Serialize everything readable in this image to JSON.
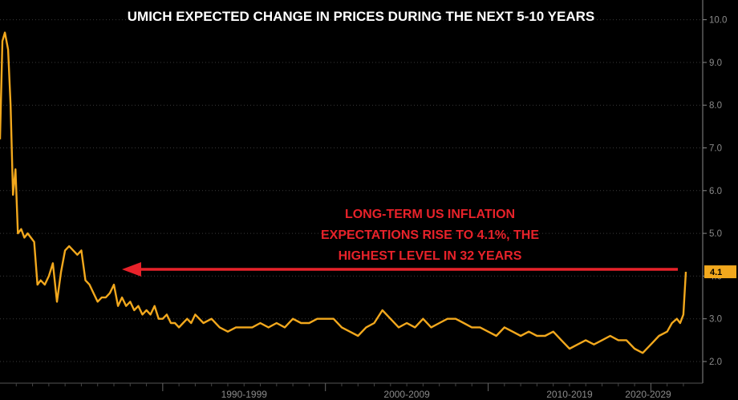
{
  "chart_data": {
    "type": "line",
    "title": "UMICH EXPECTED CHANGE IN PRICES DURING THE NEXT 5-10 YEARS",
    "xlabel": "",
    "ylabel": "",
    "ylim": [
      1.8,
      10.3
    ],
    "xlim": [
      1980.0,
      2022.2
    ],
    "y_ticks": [
      "2.0",
      "3.0",
      "4.0",
      "5.0",
      "6.0",
      "7.0",
      "8.0",
      "9.0",
      "10.0"
    ],
    "x_ticks": [
      {
        "label": "1990-1999",
        "x": 1995.0
      },
      {
        "label": "2000-2009",
        "x": 2005.0
      },
      {
        "label": "2010-2019",
        "x": 2015.0
      },
      {
        "label": "2020-2029",
        "x": 2024.5
      }
    ],
    "grid": true,
    "legend": "none",
    "line_color": "#f2a81d",
    "annotation_color": "#e8222a",
    "last_value_label": "4.1",
    "annotation_lines": [
      "LONG-TERM US INFLATION",
      "EXPECTATIONS RISE TO 4.1%, THE",
      "HIGHEST LEVEL IN 32 YEARS"
    ],
    "series": [
      {
        "x": [
          1980.0,
          1980.15,
          1980.3,
          1980.5,
          1980.65,
          1980.8,
          1980.95,
          1981.1,
          1981.3,
          1981.5,
          1981.7,
          1981.9,
          1982.1,
          1982.3,
          1982.5,
          1982.75,
          1983.0,
          1983.25,
          1983.5,
          1983.75,
          1984.0,
          1984.25,
          1984.5,
          1984.75,
          1985.0,
          1985.25,
          1985.5,
          1985.75,
          1986.0,
          1986.25,
          1986.5,
          1986.75,
          1987.0,
          1987.25,
          1987.5,
          1987.75,
          1988.0,
          1988.25,
          1988.5,
          1988.75,
          1989.0,
          1989.25,
          1989.5,
          1989.75,
          1990.0,
          1990.25,
          1990.5,
          1990.75,
          1991.0,
          1991.25,
          1991.5,
          1991.75,
          1992.0,
          1992.5,
          1993.0,
          1993.5,
          1994.0,
          1994.5,
          1995.0,
          1995.5,
          1996.0,
          1996.5,
          1997.0,
          1997.5,
          1998.0,
          1998.5,
          1999.0,
          1999.5,
          2000.0,
          2000.5,
          2001.0,
          2001.5,
          2002.0,
          2002.5,
          2003.0,
          2003.5,
          2004.0,
          2004.5,
          2005.0,
          2005.5,
          2006.0,
          2006.5,
          2007.0,
          2007.5,
          2008.0,
          2008.5,
          2009.0,
          2009.5,
          2010.0,
          2010.5,
          2011.0,
          2011.5,
          2012.0,
          2012.5,
          2013.0,
          2013.5,
          2014.0,
          2014.5,
          2015.0,
          2015.5,
          2016.0,
          2016.5,
          2017.0,
          2017.5,
          2018.0,
          2018.5,
          2019.0,
          2019.5,
          2020.0,
          2020.5,
          2021.0,
          2021.3,
          2021.6,
          2021.8,
          2022.0,
          2022.15
        ],
        "values": [
          7.2,
          9.5,
          9.7,
          9.3,
          8.0,
          5.9,
          6.5,
          5.0,
          5.1,
          4.9,
          5.0,
          4.9,
          4.8,
          3.8,
          3.9,
          3.8,
          4.0,
          4.3,
          3.4,
          4.1,
          4.6,
          4.7,
          4.6,
          4.5,
          4.6,
          3.9,
          3.8,
          3.6,
          3.4,
          3.5,
          3.5,
          3.6,
          3.8,
          3.3,
          3.5,
          3.3,
          3.4,
          3.2,
          3.3,
          3.1,
          3.2,
          3.1,
          3.3,
          3.0,
          3.0,
          3.1,
          2.9,
          2.9,
          2.8,
          2.9,
          3.0,
          2.9,
          3.1,
          2.9,
          3.0,
          2.8,
          2.7,
          2.8,
          2.8,
          2.8,
          2.9,
          2.8,
          2.9,
          2.8,
          3.0,
          2.9,
          2.9,
          3.0,
          3.0,
          3.0,
          2.8,
          2.7,
          2.6,
          2.8,
          2.9,
          3.2,
          3.0,
          2.8,
          2.9,
          2.8,
          3.0,
          2.8,
          2.9,
          3.0,
          3.0,
          2.9,
          2.8,
          2.8,
          2.7,
          2.6,
          2.8,
          2.7,
          2.6,
          2.7,
          2.6,
          2.6,
          2.7,
          2.5,
          2.3,
          2.4,
          2.5,
          2.4,
          2.5,
          2.6,
          2.5,
          2.5,
          2.3,
          2.2,
          2.4,
          2.6,
          2.7,
          2.9,
          3.0,
          2.9,
          3.1,
          4.1
        ]
      }
    ]
  }
}
